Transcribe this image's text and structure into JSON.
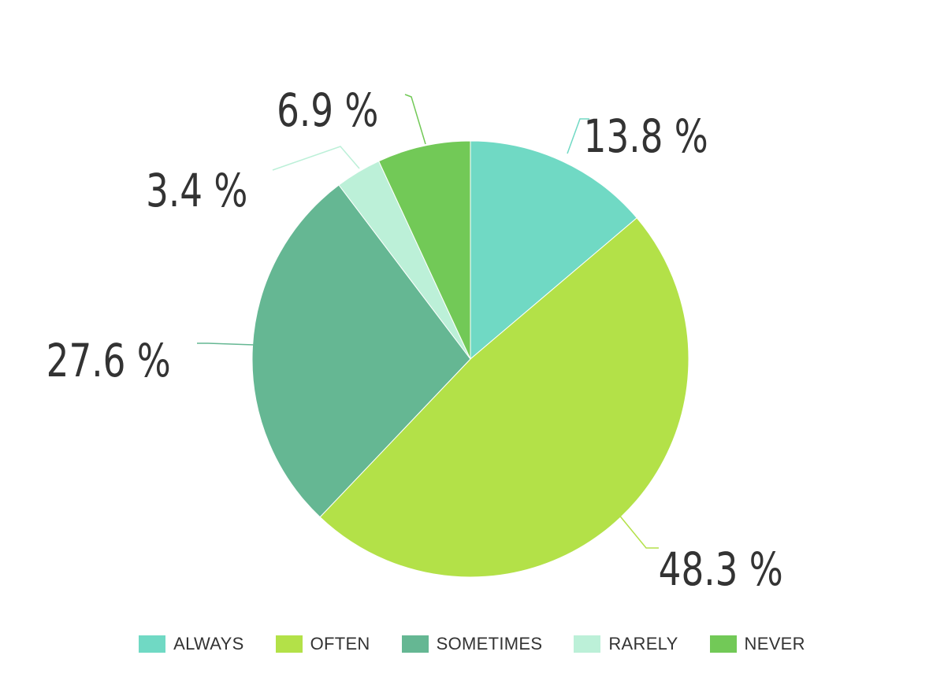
{
  "chart_data": {
    "type": "pie",
    "categories": [
      "ALWAYS",
      "OFTEN",
      "SOMETIMES",
      "RARELY",
      "NEVER"
    ],
    "values": [
      13.8,
      48.3,
      27.6,
      3.4,
      6.9
    ],
    "labels": [
      "13.8 %",
      "48.3 %",
      "27.6 %",
      "3.4 %",
      "6.9 %"
    ],
    "colors": [
      "#70d9c4",
      "#b3e148",
      "#65b793",
      "#bcf0d8",
      "#72c957"
    ],
    "start_angle": "12 o'clock",
    "direction": "clockwise",
    "legend_position": "bottom"
  }
}
